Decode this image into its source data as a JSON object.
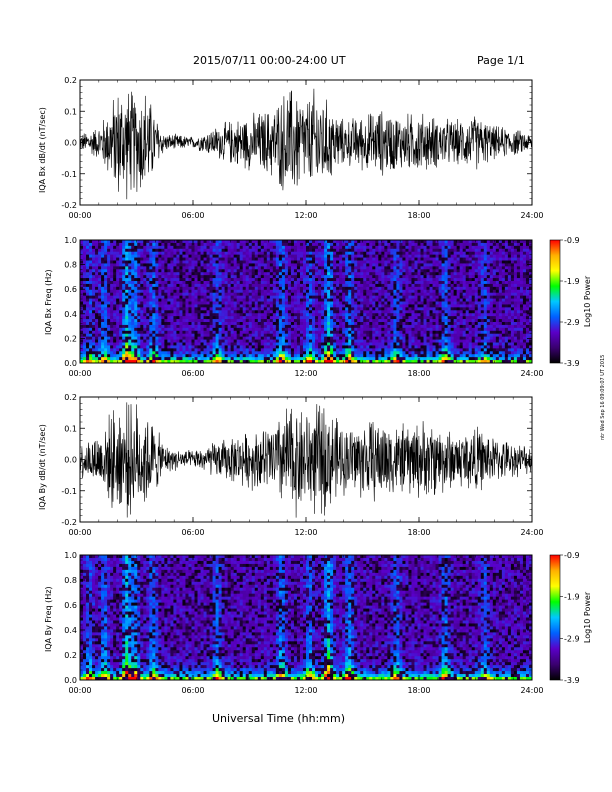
{
  "header": {
    "title": "2015/07/11  00:00-24:00 UT",
    "page": "Page 1/1"
  },
  "footer": {
    "xlabel": "Universal Time (hh:mm)"
  },
  "side_stamp": "ntr Wed Sep 16 09:09:07 UT 2015",
  "colorbar": {
    "label": "Log10 Power",
    "ticks": [
      "-0.9",
      "-1.9",
      "-2.9",
      "-3.9"
    ],
    "colors": [
      "#ff0000",
      "#ffb000",
      "#ffff00",
      "#00ff00",
      "#00c8ff",
      "#0060ff",
      "#5a00c8",
      "#3a0070",
      "#000000"
    ]
  },
  "chart_data": [
    {
      "type": "line",
      "title": "",
      "ylabel": "IQA Bx dB/dt (nT/sec)",
      "xlabel": "",
      "xticks": [
        "00:00",
        "06:00",
        "12:00",
        "18:00",
        "24:00"
      ],
      "yticks": [
        "0.2",
        "0.1",
        "0.0",
        "-0.1",
        "-0.2"
      ],
      "xlim": [
        0,
        24
      ],
      "ylim": [
        -0.2,
        0.2
      ],
      "series": [
        {
          "x": [
            0,
            1,
            1.5,
            2,
            2.5,
            3,
            3.5,
            4,
            4.5,
            5,
            6,
            7,
            8,
            9,
            10,
            10.5,
            11,
            11.5,
            12,
            12.5,
            13,
            13.5,
            14,
            15,
            16,
            17,
            18,
            19,
            20,
            21,
            22,
            23,
            24
          ],
          "y": [
            0.03,
            0.06,
            0.12,
            0.2,
            0.2,
            0.18,
            0.2,
            0.1,
            0.03,
            0.03,
            0.02,
            0.05,
            0.08,
            0.1,
            0.12,
            0.15,
            0.2,
            0.2,
            0.15,
            0.2,
            0.16,
            0.12,
            0.08,
            0.1,
            0.12,
            0.1,
            0.11,
            0.09,
            0.08,
            0.1,
            0.06,
            0.05,
            0.03
          ]
        }
      ]
    },
    {
      "type": "heatmap",
      "title": "",
      "ylabel": "IQA Bx Freq (Hz)",
      "xlabel": "",
      "xticks": [
        "00:00",
        "06:00",
        "12:00",
        "18:00",
        "24:00"
      ],
      "yticks": [
        "1.0",
        "0.8",
        "0.6",
        "0.4",
        "0.2",
        "0.0"
      ],
      "xlim": [
        0,
        24
      ],
      "ylim": [
        0,
        1.0
      ],
      "zlim": [
        -3.9,
        -0.9
      ],
      "bursts": [
        {
          "t": 0.5,
          "strength": 0.35
        },
        {
          "t": 1.3,
          "strength": 0.45
        },
        {
          "t": 2.5,
          "strength": 0.9
        },
        {
          "t": 2.9,
          "strength": 0.6
        },
        {
          "t": 3.9,
          "strength": 0.5
        },
        {
          "t": 7.3,
          "strength": 0.4
        },
        {
          "t": 10.7,
          "strength": 0.55
        },
        {
          "t": 12.2,
          "strength": 0.45
        },
        {
          "t": 13.2,
          "strength": 0.85
        },
        {
          "t": 14.3,
          "strength": 0.55
        },
        {
          "t": 16.8,
          "strength": 0.4
        },
        {
          "t": 19.4,
          "strength": 0.45
        },
        {
          "t": 21.5,
          "strength": 0.35
        }
      ]
    },
    {
      "type": "line",
      "title": "",
      "ylabel": "IQA By dB/dt (nT/sec)",
      "xlabel": "",
      "xticks": [
        "00:00",
        "06:00",
        "12:00",
        "18:00",
        "24:00"
      ],
      "yticks": [
        "0.2",
        "0.1",
        "0.0",
        "-0.1",
        "-0.2"
      ],
      "xlim": [
        0,
        24
      ],
      "ylim": [
        -0.2,
        0.2
      ],
      "series": [
        {
          "x": [
            0,
            1,
            1.5,
            2,
            2.5,
            3,
            3.5,
            4,
            4.5,
            5,
            6,
            7,
            8,
            9,
            10,
            10.5,
            11,
            11.5,
            12,
            12.5,
            13,
            13.5,
            14,
            15,
            16,
            17,
            18,
            19,
            20,
            21,
            22,
            23,
            24
          ],
          "y": [
            0.06,
            0.1,
            0.15,
            0.2,
            0.2,
            0.2,
            0.18,
            0.12,
            0.05,
            0.04,
            0.03,
            0.06,
            0.08,
            0.1,
            0.12,
            0.15,
            0.2,
            0.2,
            0.18,
            0.2,
            0.2,
            0.16,
            0.12,
            0.14,
            0.15,
            0.12,
            0.14,
            0.13,
            0.1,
            0.12,
            0.08,
            0.06,
            0.05
          ]
        }
      ]
    },
    {
      "type": "heatmap",
      "title": "",
      "ylabel": "IQA By Freq (Hz)",
      "xlabel": "",
      "xticks": [
        "00:00",
        "06:00",
        "12:00",
        "18:00",
        "24:00"
      ],
      "yticks": [
        "1.0",
        "0.8",
        "0.6",
        "0.4",
        "0.2",
        "0.0"
      ],
      "xlim": [
        0,
        24
      ],
      "ylim": [
        0,
        1.0
      ],
      "zlim": [
        -3.9,
        -0.9
      ],
      "bursts": [
        {
          "t": 0.5,
          "strength": 0.4
        },
        {
          "t": 1.3,
          "strength": 0.5
        },
        {
          "t": 2.5,
          "strength": 0.95
        },
        {
          "t": 2.9,
          "strength": 0.65
        },
        {
          "t": 3.9,
          "strength": 0.5
        },
        {
          "t": 7.3,
          "strength": 0.45
        },
        {
          "t": 10.7,
          "strength": 0.6
        },
        {
          "t": 12.2,
          "strength": 0.5
        },
        {
          "t": 13.2,
          "strength": 0.9
        },
        {
          "t": 14.3,
          "strength": 0.6
        },
        {
          "t": 16.8,
          "strength": 0.45
        },
        {
          "t": 19.4,
          "strength": 0.55
        },
        {
          "t": 21.5,
          "strength": 0.4
        }
      ]
    }
  ]
}
